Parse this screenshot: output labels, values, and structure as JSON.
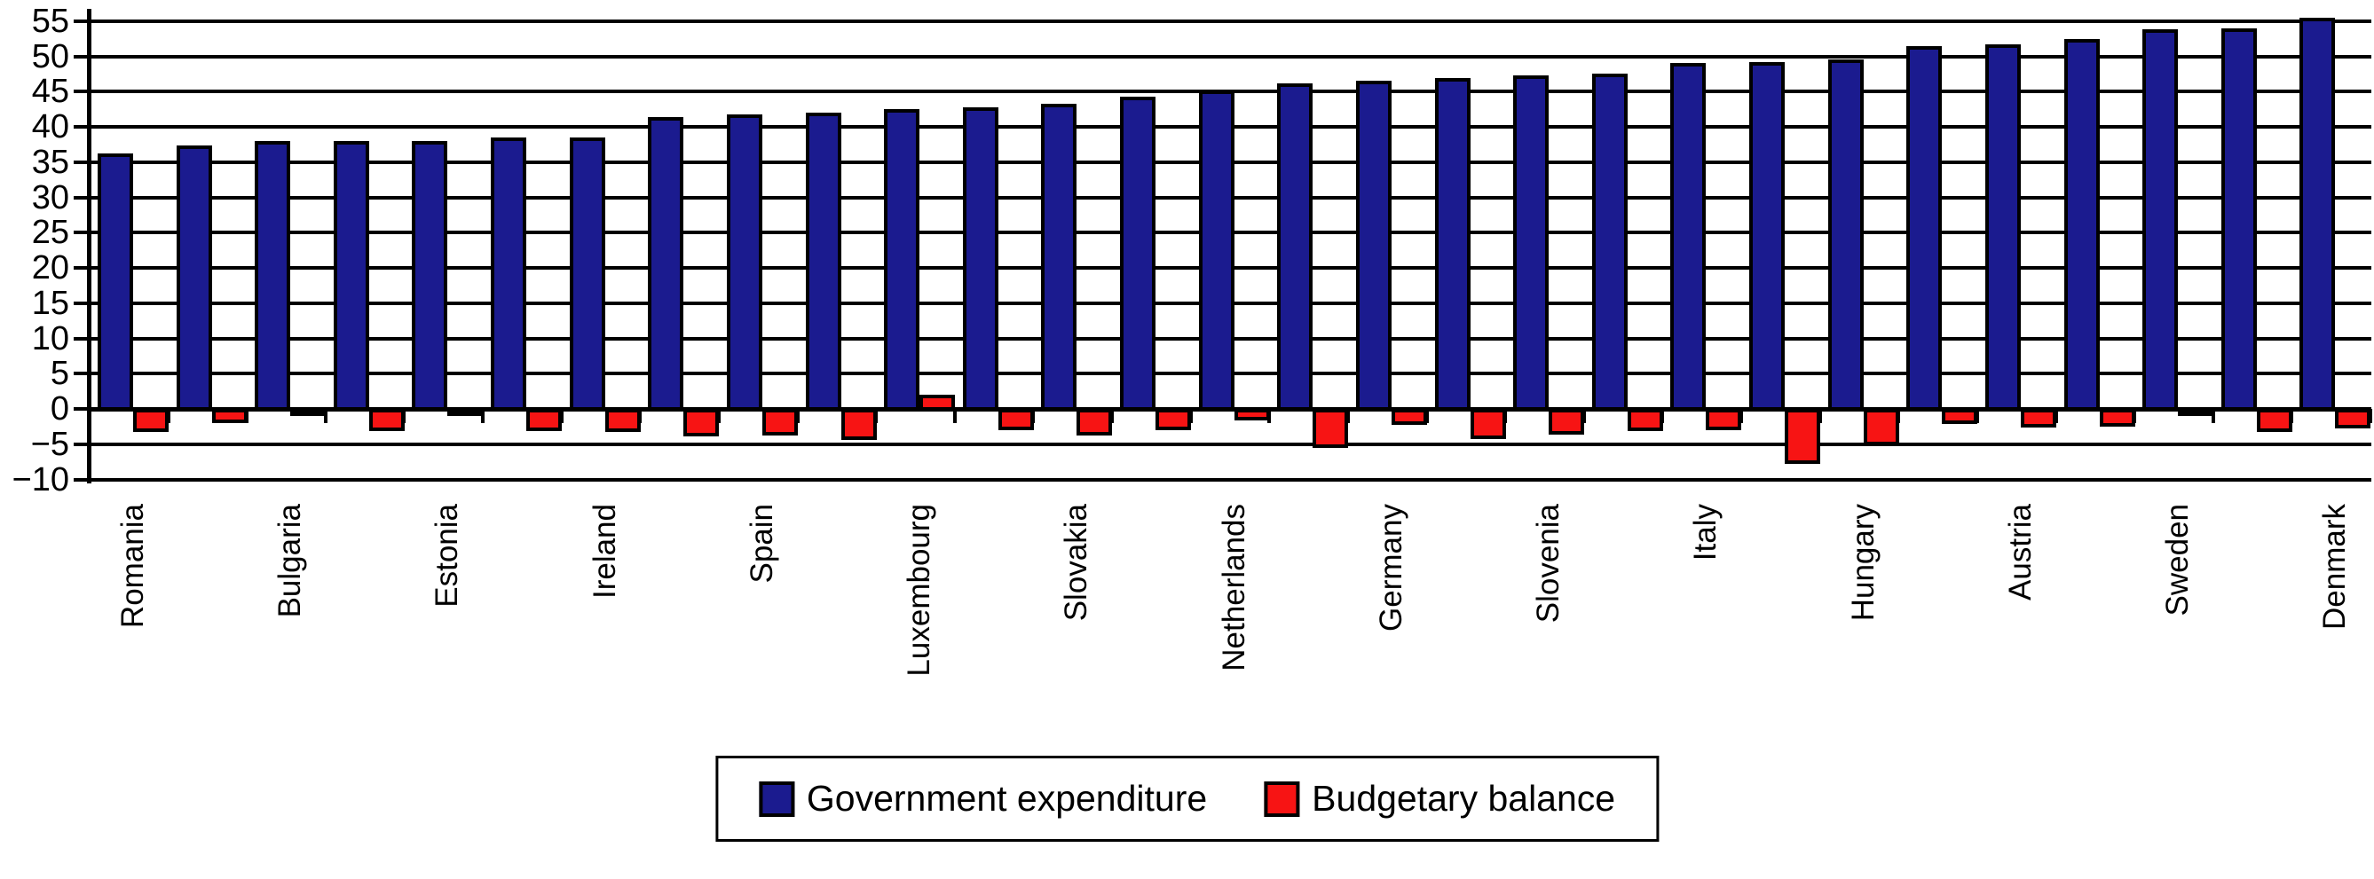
{
  "chart_data": {
    "type": "bar",
    "title": "",
    "xlabel": "",
    "ylabel": "",
    "grid": true,
    "legend_position": "bottom",
    "ylim": [
      -10,
      55
    ],
    "ytick_step": 5,
    "ytick_labels": [
      "55",
      "50",
      "45",
      "40",
      "35",
      "30",
      "25",
      "20",
      "15",
      "10",
      "5",
      "0",
      "−5",
      "−10"
    ],
    "categories": [
      "Romania",
      "",
      "Bulgaria",
      "",
      "Estonia",
      "",
      "Ireland",
      "",
      "Spain",
      "",
      "Luxembourg",
      "",
      "Slovakia",
      "",
      "Netherlands",
      "",
      "Germany",
      "",
      "Slovenia",
      "",
      "Italy",
      "",
      "Hungary",
      "",
      "Austria",
      "",
      "Sweden",
      "",
      "Denmark"
    ],
    "series": [
      {
        "name": "Government expenditure",
        "color": "#1b1b8f",
        "values": [
          36.2,
          37.3,
          38.0,
          38.0,
          38.0,
          38.5,
          38.5,
          41.4,
          41.8,
          42.0,
          42.5,
          42.8,
          43.3,
          44.3,
          45.2,
          46.2,
          46.5,
          46.9,
          47.3,
          47.6,
          49.0,
          49.2,
          49.5,
          51.5,
          51.7,
          52.4,
          53.8,
          54.0,
          55.5
        ]
      },
      {
        "name": "Budgetary balance",
        "color": "#f71414",
        "values": [
          -3.3,
          -2.0,
          -0.4,
          -3.1,
          -0.1,
          -3.2,
          -3.3,
          -3.9,
          -3.8,
          -4.4,
          2.0,
          -3.0,
          -3.8,
          -3.0,
          -1.6,
          -5.5,
          -2.3,
          -4.3,
          -3.6,
          -3.2,
          -3.0,
          -7.8,
          -5.2,
          -2.1,
          -2.7,
          -2.5,
          -0.2,
          -3.3,
          -2.8
        ]
      }
    ]
  }
}
